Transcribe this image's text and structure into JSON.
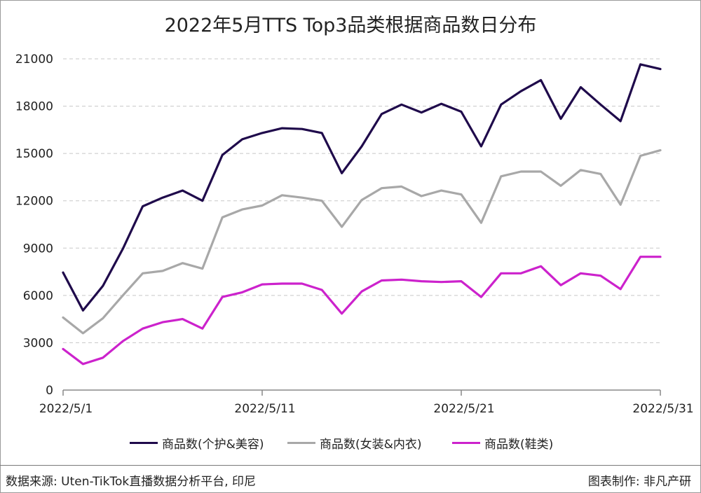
{
  "title": "2022年5月TTS Top3品类根据商品数日分布",
  "footer": {
    "source": "数据来源: Uten-TikTok直播数据分析平台, 印尼",
    "credit": "图表制作: 非凡产研"
  },
  "chart_data": {
    "type": "line",
    "title": "2022年5月TTS Top3品类根据商品数日分布",
    "ylim": [
      0,
      21000
    ],
    "yticks": [
      "0",
      "3000",
      "6000",
      "9000",
      "12000",
      "15000",
      "18000",
      "21000"
    ],
    "xticks": [
      "2022/5/1",
      "2022/5/11",
      "2022/5/21",
      "2022/5/31"
    ],
    "x": [
      "2022/5/1",
      "2022/5/2",
      "2022/5/3",
      "2022/5/4",
      "2022/5/5",
      "2022/5/6",
      "2022/5/7",
      "2022/5/8",
      "2022/5/9",
      "2022/5/10",
      "2022/5/11",
      "2022/5/12",
      "2022/5/13",
      "2022/5/14",
      "2022/5/15",
      "2022/5/16",
      "2022/5/17",
      "2022/5/18",
      "2022/5/19",
      "2022/5/20",
      "2022/5/21",
      "2022/5/22",
      "2022/5/23",
      "2022/5/24",
      "2022/5/25",
      "2022/5/26",
      "2022/5/27",
      "2022/5/28",
      "2022/5/29",
      "2022/5/30",
      "2022/5/31"
    ],
    "grid": true,
    "legend_position": "bottom",
    "series": [
      {
        "name": "商品数(个护&美容)",
        "color": "#1f0a4b",
        "values": [
          7450,
          5050,
          6600,
          8950,
          11650,
          12200,
          12650,
          12000,
          14900,
          15900,
          16300,
          16600,
          16550,
          16300,
          13750,
          15450,
          17500,
          18100,
          17600,
          18150,
          17650,
          15450,
          18100,
          18950,
          19650,
          17200,
          19200,
          18100,
          17050,
          20650,
          20350
        ]
      },
      {
        "name": "商品数(女装&内衣)",
        "color": "#a8a8a8",
        "values": [
          4600,
          3600,
          4550,
          6000,
          7400,
          7550,
          8050,
          7700,
          10950,
          11450,
          11700,
          12350,
          12200,
          12000,
          10350,
          12050,
          12800,
          12900,
          12300,
          12650,
          12400,
          10600,
          13550,
          13850,
          13850,
          12950,
          13950,
          13700,
          11750,
          14850,
          15200
        ]
      },
      {
        "name": "商品数(鞋类)",
        "color": "#cc22cc",
        "values": [
          2600,
          1650,
          2050,
          3100,
          3900,
          4300,
          4500,
          3900,
          5900,
          6200,
          6700,
          6750,
          6750,
          6350,
          4850,
          6250,
          6950,
          7000,
          6900,
          6850,
          6900,
          5900,
          7400,
          7400,
          7850,
          6650,
          7400,
          7250,
          6400,
          8450,
          8450
        ]
      }
    ]
  }
}
